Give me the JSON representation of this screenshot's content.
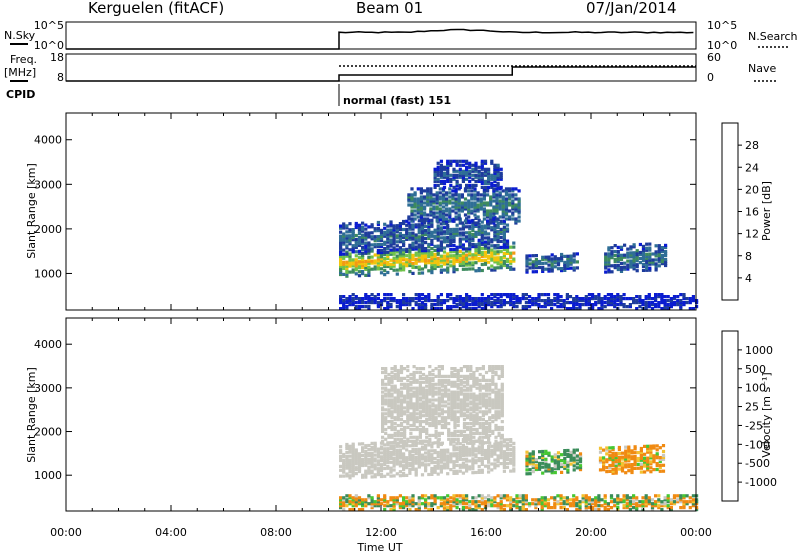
{
  "header": {
    "station": "Kerguelen (fitACF)",
    "beam": "Beam 01",
    "date": "07/Jan/2014"
  },
  "top_panels": {
    "nsky_label": "N.Sky",
    "nsky_ticks": [
      "10^5",
      "10^0"
    ],
    "nsearch_label": "N.Search",
    "nsearch_ticks": [
      "10^5",
      "10^0"
    ],
    "freq_label_1": "Freq.",
    "freq_label_2": "[MHz]",
    "freq_ticks": [
      "18",
      "8"
    ],
    "nave_label": "Nave",
    "nave_ticks": [
      "60",
      "0"
    ],
    "cpid_label": "CPID",
    "cpid_text": "normal (fast) 151"
  },
  "colors": {
    "power_scale": [
      "#0a1cd0",
      "#1e3c9c",
      "#2f6e96",
      "#3d8a5e",
      "#70c34a",
      "#f2c40c",
      "#f39a12",
      "#ec6414",
      "#dc1414"
    ],
    "velocity_scale": [
      "#ff1414",
      "#ef5a14",
      "#f08a12",
      "#f3c232",
      "#c9c8c0",
      "#46c832",
      "#3a8c5a",
      "#2e6aa0",
      "#1838c8"
    ],
    "ground": "#c9c8c0",
    "noise": "#fafafa"
  },
  "chart_data": [
    {
      "type": "heatmap",
      "name": "Power",
      "ylabel": "Slant Range [km]",
      "xlim": [
        0,
        24
      ],
      "ylim": [
        180,
        4600
      ],
      "yticks": [
        1000,
        2000,
        3000,
        4000
      ],
      "colorbar": {
        "label": "Power [dB]",
        "ticks": [
          4,
          8,
          12,
          16,
          20,
          24,
          28
        ],
        "range": [
          0,
          32
        ]
      },
      "regions": [
        {
          "t": [
            10.4,
            17.0
          ],
          "r": [
            900,
            1500
          ],
          "level": 24,
          "desc": "main band"
        },
        {
          "t": [
            10.4,
            16.8
          ],
          "r": [
            1400,
            2100
          ],
          "level": 10
        },
        {
          "t": [
            13.0,
            17.3
          ],
          "r": [
            2100,
            2900
          ],
          "level": 12
        },
        {
          "t": [
            14.0,
            16.6
          ],
          "r": [
            2900,
            3500
          ],
          "level": 8
        },
        {
          "t": [
            17.5,
            19.5
          ],
          "r": [
            1000,
            1400
          ],
          "level": 12
        },
        {
          "t": [
            20.5,
            22.8
          ],
          "r": [
            1000,
            1600
          ],
          "level": 12
        },
        {
          "t": [
            10.4,
            24.0
          ],
          "r": [
            180,
            500
          ],
          "level": 4
        }
      ]
    },
    {
      "type": "heatmap",
      "name": "Velocity",
      "ylabel": "Slant Range [km]",
      "xlabel": "Time UT",
      "xlim": [
        0,
        24
      ],
      "xticks": [
        "00:00",
        "04:00",
        "08:00",
        "12:00",
        "16:00",
        "20:00",
        "00:00"
      ],
      "ylim": [
        180,
        4600
      ],
      "yticks": [
        1000,
        2000,
        3000,
        4000
      ],
      "colorbar": {
        "label": "Velocity [m s⁻¹]",
        "ticks": [
          -1000,
          -500,
          -100,
          -25,
          25,
          100,
          500,
          1000
        ]
      },
      "regions": [
        {
          "t": [
            10.4,
            17.0
          ],
          "r": [
            900,
            1700
          ],
          "value": 0,
          "desc": "ground scatter"
        },
        {
          "t": [
            12.0,
            16.6
          ],
          "r": [
            1700,
            3500
          ],
          "value": 0
        },
        {
          "t": [
            17.5,
            19.6
          ],
          "r": [
            1000,
            1500
          ],
          "value": 150
        },
        {
          "t": [
            20.3,
            22.8
          ],
          "r": [
            1000,
            1600
          ],
          "value": -200
        },
        {
          "t": [
            10.4,
            24.0
          ],
          "r": [
            180,
            500
          ],
          "value": -50
        }
      ]
    }
  ],
  "cpid": {
    "start_ut": 10.4,
    "program": "normal (fast) 151"
  },
  "freq_step": {
    "before_ut": 17.0,
    "low": 10,
    "high": 12
  }
}
